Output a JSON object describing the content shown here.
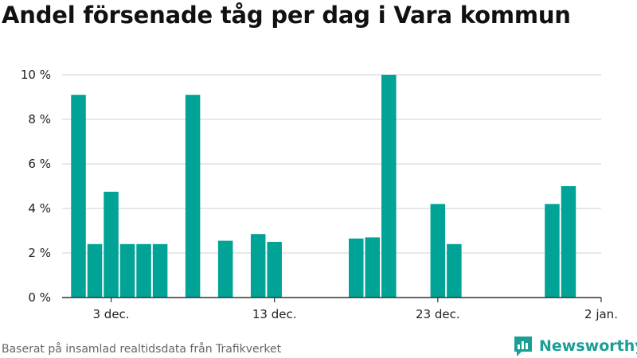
{
  "title": "Andel försenade tåg per dag i Vara kommun",
  "footer": "Baserat på insamlad realtidsdata från Trafikverket",
  "brand": {
    "name": "Newsworthy",
    "icon": "newsworthy-logo-icon",
    "color": "#1a9e96"
  },
  "colors": {
    "bar": "#00a396",
    "grid": "#d9d9d9",
    "axis": "#333333"
  },
  "chart_data": {
    "type": "bar",
    "title": "Andel försenade tåg per dag i Vara kommun",
    "xlabel": "",
    "ylabel": "",
    "x_range": [
      "2023-11-30",
      "2024-01-02"
    ],
    "ylim": [
      0,
      10
    ],
    "y_ticks": [
      {
        "value": 0,
        "label": "0 %"
      },
      {
        "value": 2,
        "label": "2 %"
      },
      {
        "value": 4,
        "label": "4 %"
      },
      {
        "value": 6,
        "label": "6 %"
      },
      {
        "value": 8,
        "label": "8 %"
      },
      {
        "value": 10,
        "label": "10 %"
      }
    ],
    "x_ticks": [
      {
        "date": "2023-12-03",
        "label": "3 dec."
      },
      {
        "date": "2023-12-13",
        "label": "13 dec."
      },
      {
        "date": "2023-12-23",
        "label": "23 dec."
      },
      {
        "date": "2024-01-02",
        "label": "2 jan."
      }
    ],
    "grid": true,
    "legend": "none",
    "series": [
      {
        "values": [
          {
            "date": "2023-12-01",
            "value": 9.1
          },
          {
            "date": "2023-12-02",
            "value": 2.4
          },
          {
            "date": "2023-12-03",
            "value": 4.75
          },
          {
            "date": "2023-12-04",
            "value": 2.4
          },
          {
            "date": "2023-12-05",
            "value": 2.4
          },
          {
            "date": "2023-12-06",
            "value": 2.4
          },
          {
            "date": "2023-12-08",
            "value": 9.1
          },
          {
            "date": "2023-12-10",
            "value": 2.55
          },
          {
            "date": "2023-12-12",
            "value": 2.85
          },
          {
            "date": "2023-12-13",
            "value": 2.5
          },
          {
            "date": "2023-12-18",
            "value": 2.65
          },
          {
            "date": "2023-12-19",
            "value": 2.7
          },
          {
            "date": "2023-12-20",
            "value": 10.0
          },
          {
            "date": "2023-12-23",
            "value": 4.2
          },
          {
            "date": "2023-12-24",
            "value": 2.4
          },
          {
            "date": "2023-12-30",
            "value": 4.2
          },
          {
            "date": "2023-12-31",
            "value": 5.0
          }
        ]
      }
    ]
  }
}
